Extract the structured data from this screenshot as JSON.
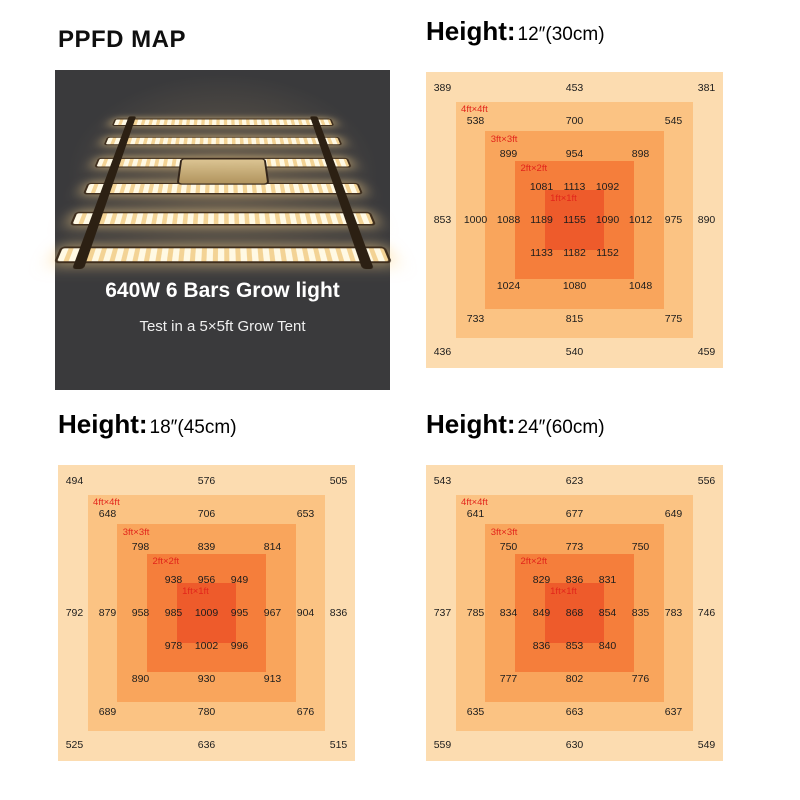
{
  "page": {
    "title": "PPFD MAP"
  },
  "product_card": {
    "name": "640W 6 Bars  Grow light",
    "subtitle": "Test in a 5×5ft Grow Tent"
  },
  "ring_labels": [
    "4ft×4ft",
    "3ft×3ft",
    "2ft×2ft",
    "1ft×1ft"
  ],
  "colors": {
    "panel_bg": "#3A3A3C",
    "ring_fills": [
      "#FCDCB0",
      "#FBC383",
      "#F9A55C",
      "#F57E3B",
      "#EE5B2B"
    ],
    "value_text": "#1D1D1D",
    "ring_label_text": "#E2251B"
  },
  "chart_data": [
    {
      "type": "heatmap",
      "title": "Height: 12″(30cm)",
      "header": {
        "label": "Height:",
        "value": "12″(30cm)"
      },
      "grid": {
        "rows": 9,
        "cols": 9
      },
      "rings_ft": [
        "5×5",
        "4×4",
        "3×3",
        "2×2",
        "1×1"
      ],
      "cells": [
        [
          0,
          0,
          389
        ],
        [
          0,
          4,
          453
        ],
        [
          0,
          8,
          381
        ],
        [
          1,
          1,
          538
        ],
        [
          1,
          4,
          700
        ],
        [
          1,
          7,
          545
        ],
        [
          2,
          2,
          899
        ],
        [
          2,
          4,
          954
        ],
        [
          2,
          6,
          898
        ],
        [
          3,
          3,
          1081
        ],
        [
          3,
          4,
          1113
        ],
        [
          3,
          5,
          1092
        ],
        [
          4,
          0,
          853
        ],
        [
          4,
          1,
          1000
        ],
        [
          4,
          2,
          1088
        ],
        [
          4,
          3,
          1189
        ],
        [
          4,
          4,
          1155
        ],
        [
          4,
          5,
          1090
        ],
        [
          4,
          6,
          1012
        ],
        [
          4,
          7,
          975
        ],
        [
          4,
          8,
          890
        ],
        [
          5,
          3,
          1133
        ],
        [
          5,
          4,
          1182
        ],
        [
          5,
          5,
          1152
        ],
        [
          6,
          2,
          1024
        ],
        [
          6,
          4,
          1080
        ],
        [
          6,
          6,
          1048
        ],
        [
          7,
          1,
          733
        ],
        [
          7,
          4,
          815
        ],
        [
          7,
          7,
          775
        ],
        [
          8,
          0,
          436
        ],
        [
          8,
          4,
          540
        ],
        [
          8,
          8,
          459
        ]
      ]
    },
    {
      "type": "heatmap",
      "title": "Height: 18″(45cm)",
      "header": {
        "label": "Height:",
        "value": "18″(45cm)"
      },
      "grid": {
        "rows": 9,
        "cols": 9
      },
      "rings_ft": [
        "5×5",
        "4×4",
        "3×3",
        "2×2",
        "1×1"
      ],
      "cells": [
        [
          0,
          0,
          494
        ],
        [
          0,
          4,
          576
        ],
        [
          0,
          8,
          505
        ],
        [
          1,
          1,
          648
        ],
        [
          1,
          4,
          706
        ],
        [
          1,
          7,
          653
        ],
        [
          2,
          2,
          798
        ],
        [
          2,
          4,
          839
        ],
        [
          2,
          6,
          814
        ],
        [
          3,
          3,
          938
        ],
        [
          3,
          4,
          956
        ],
        [
          3,
          5,
          949
        ],
        [
          4,
          0,
          792
        ],
        [
          4,
          1,
          879
        ],
        [
          4,
          2,
          958
        ],
        [
          4,
          3,
          985
        ],
        [
          4,
          4,
          1009
        ],
        [
          4,
          5,
          995
        ],
        [
          4,
          6,
          967
        ],
        [
          4,
          7,
          904
        ],
        [
          4,
          8,
          836
        ],
        [
          5,
          3,
          978
        ],
        [
          5,
          4,
          1002
        ],
        [
          5,
          5,
          996
        ],
        [
          6,
          2,
          890
        ],
        [
          6,
          4,
          930
        ],
        [
          6,
          6,
          913
        ],
        [
          7,
          1,
          689
        ],
        [
          7,
          4,
          780
        ],
        [
          7,
          7,
          676
        ],
        [
          8,
          0,
          525
        ],
        [
          8,
          4,
          636
        ],
        [
          8,
          8,
          515
        ]
      ]
    },
    {
      "type": "heatmap",
      "title": "Height: 24″(60cm)",
      "header": {
        "label": "Height:",
        "value": "24″(60cm)"
      },
      "grid": {
        "rows": 9,
        "cols": 9
      },
      "rings_ft": [
        "5×5",
        "4×4",
        "3×3",
        "2×2",
        "1×1"
      ],
      "cells": [
        [
          0,
          0,
          543
        ],
        [
          0,
          4,
          623
        ],
        [
          0,
          8,
          556
        ],
        [
          1,
          1,
          641
        ],
        [
          1,
          4,
          677
        ],
        [
          1,
          7,
          649
        ],
        [
          2,
          2,
          750
        ],
        [
          2,
          4,
          773
        ],
        [
          2,
          6,
          750
        ],
        [
          3,
          3,
          829
        ],
        [
          3,
          4,
          836
        ],
        [
          3,
          5,
          831
        ],
        [
          4,
          0,
          737
        ],
        [
          4,
          1,
          785
        ],
        [
          4,
          2,
          834
        ],
        [
          4,
          3,
          849
        ],
        [
          4,
          4,
          868
        ],
        [
          4,
          5,
          854
        ],
        [
          4,
          6,
          835
        ],
        [
          4,
          7,
          783
        ],
        [
          4,
          8,
          746
        ],
        [
          5,
          3,
          836
        ],
        [
          5,
          4,
          853
        ],
        [
          5,
          5,
          840
        ],
        [
          6,
          2,
          777
        ],
        [
          6,
          4,
          802
        ],
        [
          6,
          6,
          776
        ],
        [
          7,
          1,
          635
        ],
        [
          7,
          4,
          663
        ],
        [
          7,
          7,
          637
        ],
        [
          8,
          0,
          559
        ],
        [
          8,
          4,
          630
        ],
        [
          8,
          8,
          549
        ]
      ]
    }
  ]
}
